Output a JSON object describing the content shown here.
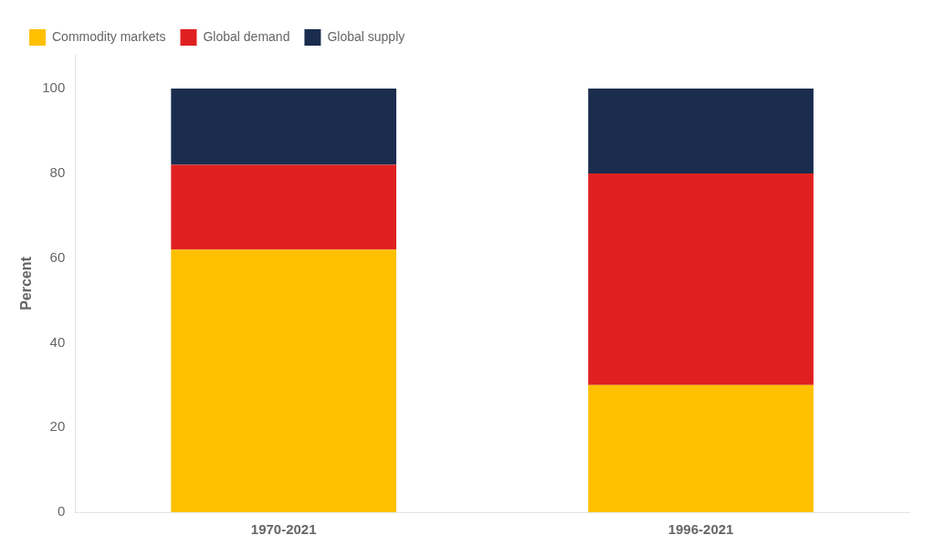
{
  "chart_data": {
    "type": "bar",
    "categories": [
      "1970-2021",
      "1996-2021"
    ],
    "series": [
      {
        "name": "Commodity markets",
        "color": "#FFC000",
        "values": [
          62,
          30
        ]
      },
      {
        "name": "Global demand",
        "color": "#E02020",
        "values": [
          20,
          50
        ]
      },
      {
        "name": "Global supply",
        "color": "#1A2D4E",
        "values": [
          18,
          20
        ]
      }
    ],
    "ylabel": "Percent",
    "ylim": [
      0,
      108
    ],
    "yticks": [
      0,
      20,
      40,
      60,
      80,
      100
    ],
    "stacked": true,
    "grid": false,
    "legend": "upper left"
  }
}
